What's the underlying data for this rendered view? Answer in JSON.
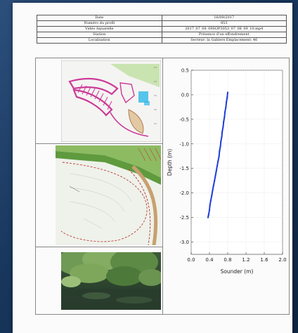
{
  "info_table": {
    "rows": [
      {
        "key": "Date",
        "value": "16/09/2017"
      },
      {
        "key": "Numéro du profil",
        "value": "853"
      },
      {
        "key": "Vidéo Aquarelle",
        "value": "2017_07_08_09SOP3053_07_08_09_10.mp4"
      },
      {
        "key": "Station",
        "value": "Présence d'un effondrement"
      },
      {
        "key": "Localisation",
        "value": "Secteur: la Gabiers Emplacement: 46"
      }
    ]
  },
  "images": {
    "site_plan": "site-plan-map",
    "orthophoto": "orthophoto-map",
    "photo": "riverbank-photo"
  },
  "chart_data": {
    "type": "line",
    "xlabel": "Sounder (m)",
    "ylabel": "Depth (m)",
    "xlim": [
      0.0,
      2.0
    ],
    "ylim": [
      -3.25,
      0.5
    ],
    "x_ticks": [
      "0.0",
      "0.4",
      "0.8",
      "1.2",
      "1.6",
      "2.0"
    ],
    "y_ticks": [
      "0.5",
      "0.0",
      "-0.5",
      "-1.0",
      "-1.5",
      "-2.0",
      "-2.5",
      "-3.0"
    ],
    "y_tick_values": [
      0.5,
      0.0,
      -0.5,
      -1.0,
      -1.5,
      -2.0,
      -2.5,
      -3.0
    ],
    "x_tick_values": [
      0.0,
      0.4,
      0.8,
      1.2,
      1.6,
      2.0
    ],
    "grid": true,
    "series": [
      {
        "color": "#1f3fd8",
        "x": [
          0.8,
          0.79,
          0.77,
          0.76,
          0.74,
          0.73,
          0.71,
          0.7,
          0.68,
          0.67,
          0.65,
          0.64,
          0.62,
          0.61,
          0.59,
          0.57,
          0.55,
          0.53,
          0.51,
          0.49,
          0.47,
          0.45,
          0.43,
          0.41,
          0.4,
          0.38,
          0.37
        ],
        "y": [
          0.05,
          -0.05,
          -0.15,
          -0.25,
          -0.35,
          -0.45,
          -0.55,
          -0.65,
          -0.75,
          -0.85,
          -0.95,
          -1.05,
          -1.15,
          -1.25,
          -1.35,
          -1.45,
          -1.55,
          -1.65,
          -1.75,
          -1.85,
          -1.95,
          -2.05,
          -2.15,
          -2.25,
          -2.35,
          -2.45,
          -2.5
        ]
      }
    ]
  }
}
